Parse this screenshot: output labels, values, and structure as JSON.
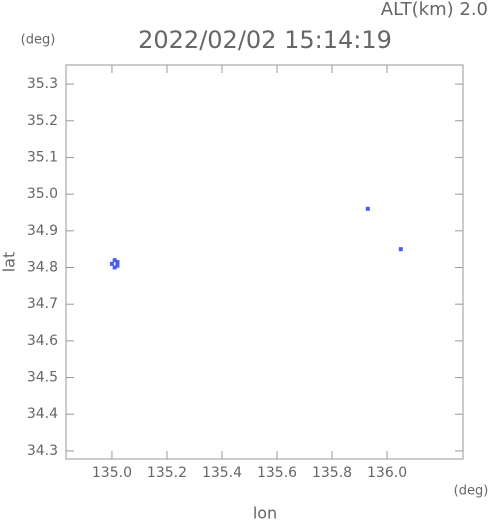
{
  "chart_data": {
    "type": "scatter",
    "title": "2022/02/02 15:14:19",
    "annotations": {
      "altitude": "ALT(km) 2.0",
      "y_unit": "(deg)",
      "x_unit": "(deg)"
    },
    "x_label": "lon",
    "y_label": "lat",
    "series": [
      {
        "color": "#4a5cf0",
        "x": [
          135.01,
          135.02,
          135.0,
          135.02,
          135.01,
          135.93,
          136.05
        ],
        "values": [
          34.82,
          34.815,
          34.81,
          34.805,
          34.8,
          34.96,
          34.85
        ]
      }
    ],
    "xlim": [
      134.833,
      136.276
    ],
    "ylim": [
      34.278,
      35.352
    ],
    "xticks": [
      {
        "value": 135,
        "label": "135.0"
      },
      135.2,
      135.4,
      135.6,
      135.8,
      {
        "value": 136,
        "label": "136.0"
      }
    ],
    "yticks": [
      34.3,
      34.4,
      34.5,
      34.6,
      34.7,
      34.8,
      34.9,
      {
        "value": 35,
        "label": "35.0"
      },
      35.1,
      35.2,
      35.3
    ],
    "grid": false
  }
}
